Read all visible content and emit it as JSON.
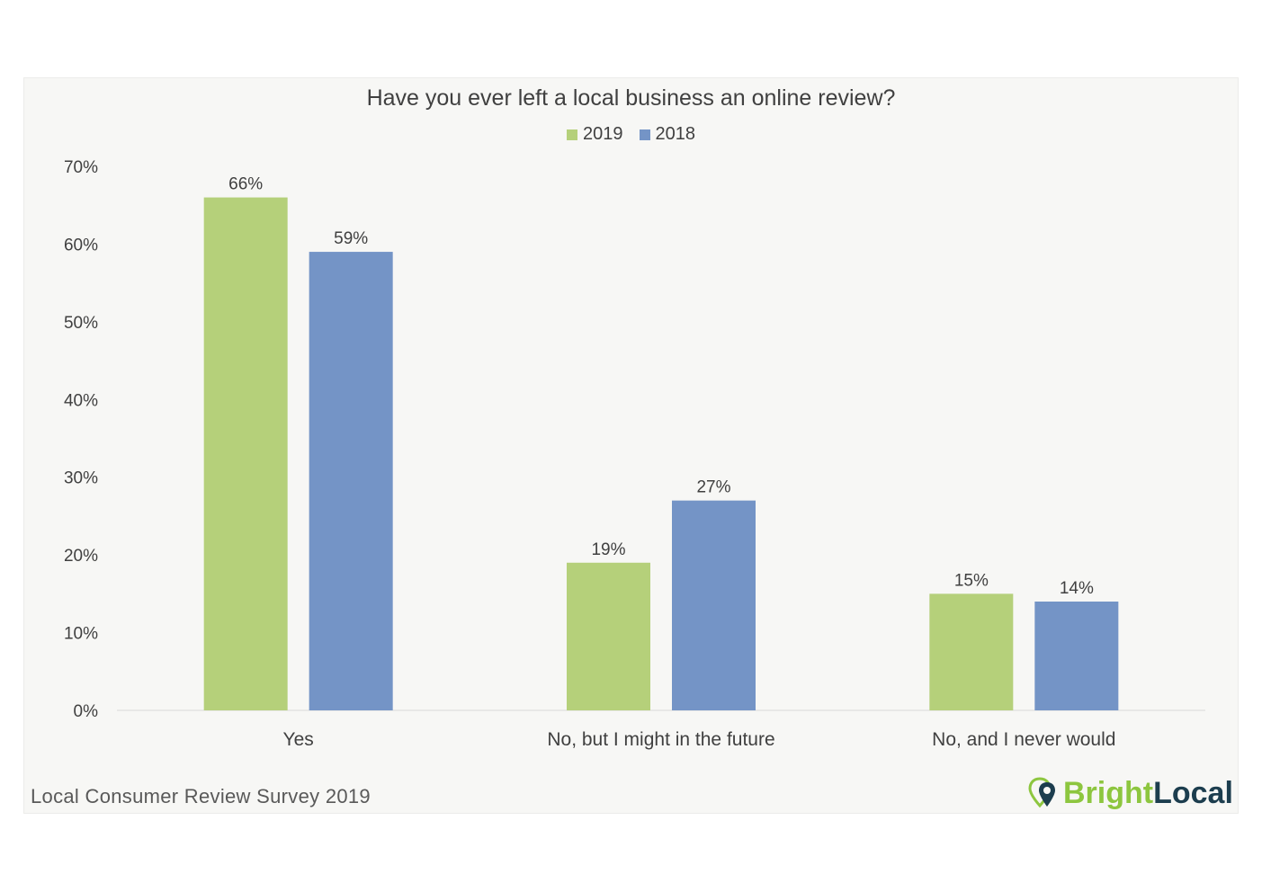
{
  "chart_data": {
    "type": "bar",
    "title": "Have you ever left a local business an online review?",
    "categories": [
      "Yes",
      "No, but I might in the future",
      "No, and I never would"
    ],
    "series": [
      {
        "name": "2019",
        "values": [
          66,
          19,
          15
        ],
        "color": "#b5d07a"
      },
      {
        "name": "2018",
        "values": [
          59,
          27,
          14
        ],
        "color": "#7494c6"
      }
    ],
    "data_labels": [
      [
        "66%",
        "19%",
        "15%"
      ],
      [
        "59%",
        "27%",
        "14%"
      ]
    ],
    "y_ticks": [
      "0%",
      "10%",
      "20%",
      "30%",
      "40%",
      "50%",
      "60%",
      "70%"
    ],
    "ylim": [
      0,
      70
    ],
    "grid": false,
    "legend_position": "top"
  },
  "footer": {
    "source": "Local Consumer Review Survey 2019",
    "logo_bright": "Bright",
    "logo_local": "Local"
  }
}
